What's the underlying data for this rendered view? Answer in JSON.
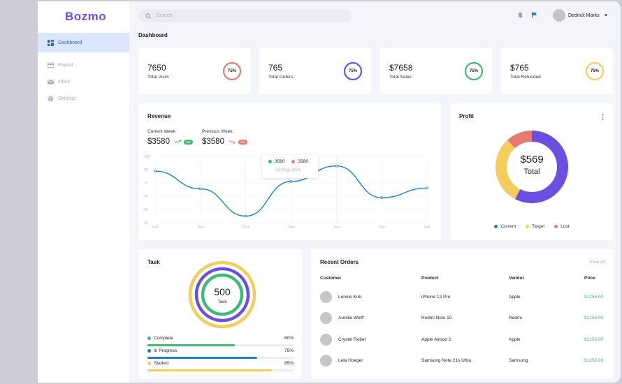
{
  "app": {
    "logo": "Bozmo"
  },
  "sidebar": {
    "items": [
      {
        "label": "Dashboard",
        "icon": "dashboard-icon",
        "active": true
      },
      {
        "label": "Payout",
        "icon": "card-icon",
        "active": false
      },
      {
        "label": "Inbox",
        "icon": "mail-icon",
        "active": false
      },
      {
        "label": "Settings",
        "icon": "gear-icon",
        "active": false
      }
    ]
  },
  "header": {
    "search_placeholder": "Search",
    "user_name": "Dedrick Marks"
  },
  "page_title": "Dashboard",
  "stats": [
    {
      "value": "7650",
      "label": "Total Visits",
      "percent": "75%",
      "color": "#e07a7a"
    },
    {
      "value": "765",
      "label": "Total Orders",
      "percent": "75%",
      "color": "#6a4fe0"
    },
    {
      "value": "$7658",
      "label": "Total Sales",
      "percent": "75%",
      "color": "#3fb97a"
    },
    {
      "value": "$765",
      "label": "Total Refunded",
      "percent": "75%",
      "color": "#f5cd5c"
    }
  ],
  "revenue": {
    "title": "Revenue",
    "current_label": "Current Week",
    "current_value": "$3580",
    "current_badge": "5%",
    "previous_label": "Previous Week",
    "previous_value": "$3580",
    "previous_badge": "5%",
    "tooltip": {
      "current": "3580",
      "previous": "3580",
      "date": "22 Aug, 2021"
    }
  },
  "chart_data": {
    "type": "line",
    "y_ticks": [
      "100",
      "80",
      "70",
      "50",
      "30",
      "10"
    ],
    "categories": [
      "Text",
      "Text",
      "Text",
      "Text",
      "Text",
      "Text",
      "Text"
    ],
    "series": [
      {
        "values": [
          80,
          56,
          19,
          66,
          87,
          44,
          57
        ]
      }
    ]
  },
  "profit": {
    "title": "Profit",
    "value": "$569",
    "label": "Total",
    "legend": [
      {
        "label": "Current",
        "color": "#1e7dd4"
      },
      {
        "label": "Target",
        "color": "#f5cd5c"
      },
      {
        "label": "Lost",
        "color": "#e57b72"
      }
    ]
  },
  "task": {
    "title": "Task",
    "total": "500",
    "total_label": "Task",
    "items": [
      {
        "label": "Complete",
        "percent": "60%",
        "fraction": 0.6,
        "color": "#3fb97a"
      },
      {
        "label": "In Progress",
        "percent": "75%",
        "fraction": 0.75,
        "color": "#1e7dd4"
      },
      {
        "label": "Started",
        "percent": "85%",
        "fraction": 0.85,
        "color": "#f5cd5c"
      }
    ]
  },
  "orders": {
    "title": "Recent Orders",
    "view_all": "View All",
    "columns": [
      "Customer",
      "Product",
      "Vendor",
      "Price"
    ],
    "rows": [
      {
        "customer": "Lonnie Kub",
        "product": "iPhone 12 Pro",
        "vendor": "Apple",
        "price": "$1256.00"
      },
      {
        "customer": "Aurelie Wolff",
        "product": "Redmi Note 10",
        "vendor": "Redmi",
        "price": "$1256.00"
      },
      {
        "customer": "Crystel Robel",
        "product": "Apple Airpod 2",
        "vendor": "Apple",
        "price": "$1256.00"
      },
      {
        "customer": "Lela Hoeger",
        "product": "Samsung Note 21s Ultra",
        "vendor": "Samsung",
        "price": "$1256.00"
      }
    ]
  }
}
